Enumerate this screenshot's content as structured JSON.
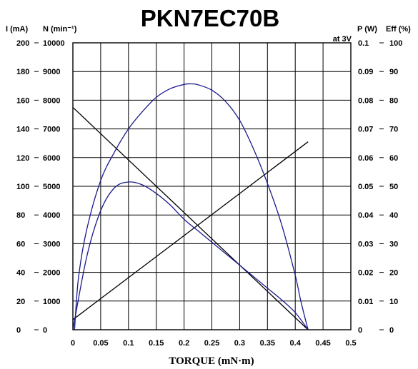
{
  "chart_data": {
    "type": "line",
    "title": "PKN7EC70B",
    "xlabel": "TORQUE (mN·m)",
    "annotation": "at 3V",
    "x_ticks": [
      "0",
      "0.05",
      "0.1",
      "0.15",
      "0.2",
      "0.25",
      "0.3",
      "0.35",
      "0.4",
      "0.45",
      "0.5"
    ],
    "xlim": [
      0,
      0.5
    ],
    "grid": true,
    "axes": [
      {
        "id": "current",
        "label": "I (mA)",
        "side": "left-outer",
        "ticks": [
          "0",
          "20",
          "40",
          "60",
          "80",
          "100",
          "120",
          "140",
          "160",
          "180",
          "200"
        ],
        "ylim": [
          0,
          200
        ]
      },
      {
        "id": "speed",
        "label": "N (min⁻¹)",
        "side": "left-inner",
        "ticks": [
          "0",
          "1000",
          "2000",
          "3000",
          "4000",
          "5000",
          "6000",
          "7000",
          "8000",
          "9000",
          "10000"
        ],
        "ylim": [
          0,
          10000
        ]
      },
      {
        "id": "power",
        "label": "P (W)",
        "side": "right-inner",
        "ticks": [
          "0",
          "0.01",
          "0.02",
          "0.03",
          "0.04",
          "0.05",
          "0.06",
          "0.07",
          "0.08",
          "0.09",
          "0.1"
        ],
        "ylim": [
          0,
          0.1
        ]
      },
      {
        "id": "efficiency",
        "label": "Eff (%)",
        "side": "right-outer",
        "ticks": [
          "0",
          "10",
          "20",
          "30",
          "40",
          "50",
          "60",
          "70",
          "80",
          "90",
          "100"
        ],
        "ylim": [
          0,
          100
        ]
      }
    ],
    "series": [
      {
        "id": "speed-line",
        "axis": "speed",
        "color": "#000000",
        "curve": "linear",
        "x": [
          0,
          0.423
        ],
        "y": [
          7750,
          0
        ]
      },
      {
        "id": "current-line",
        "axis": "current",
        "color": "#000000",
        "curve": "linear",
        "x": [
          0,
          0.423
        ],
        "y": [
          7,
          131
        ]
      },
      {
        "id": "efficiency-curve",
        "axis": "efficiency",
        "color": "#1a1a8c",
        "curve": "smooth",
        "x": [
          0.003,
          0.01,
          0.025,
          0.05,
          0.075,
          0.1,
          0.125,
          0.15,
          0.175,
          0.2,
          0.212,
          0.225,
          0.25,
          0.275,
          0.3,
          0.325,
          0.35,
          0.375,
          0.4,
          0.41,
          0.423
        ],
        "y": [
          0,
          18,
          35,
          52,
          62,
          70,
          76,
          81,
          84,
          85.5,
          85.7,
          85.4,
          83.5,
          79.5,
          73,
          63,
          51,
          37,
          19,
          10,
          0
        ]
      },
      {
        "id": "power-curve",
        "axis": "power",
        "color": "#1a1a8c",
        "curve": "smooth",
        "x": [
          0,
          0.025,
          0.05,
          0.075,
          0.1,
          0.125,
          0.15,
          0.175,
          0.2,
          0.225,
          0.25,
          0.275,
          0.3,
          0.325,
          0.35,
          0.375,
          0.4,
          0.423
        ],
        "y": [
          0,
          0.0255,
          0.0415,
          0.0495,
          0.0515,
          0.0505,
          0.0475,
          0.0435,
          0.0385,
          0.0345,
          0.0305,
          0.0265,
          0.0225,
          0.0185,
          0.0145,
          0.0105,
          0.006,
          0
        ]
      }
    ]
  }
}
